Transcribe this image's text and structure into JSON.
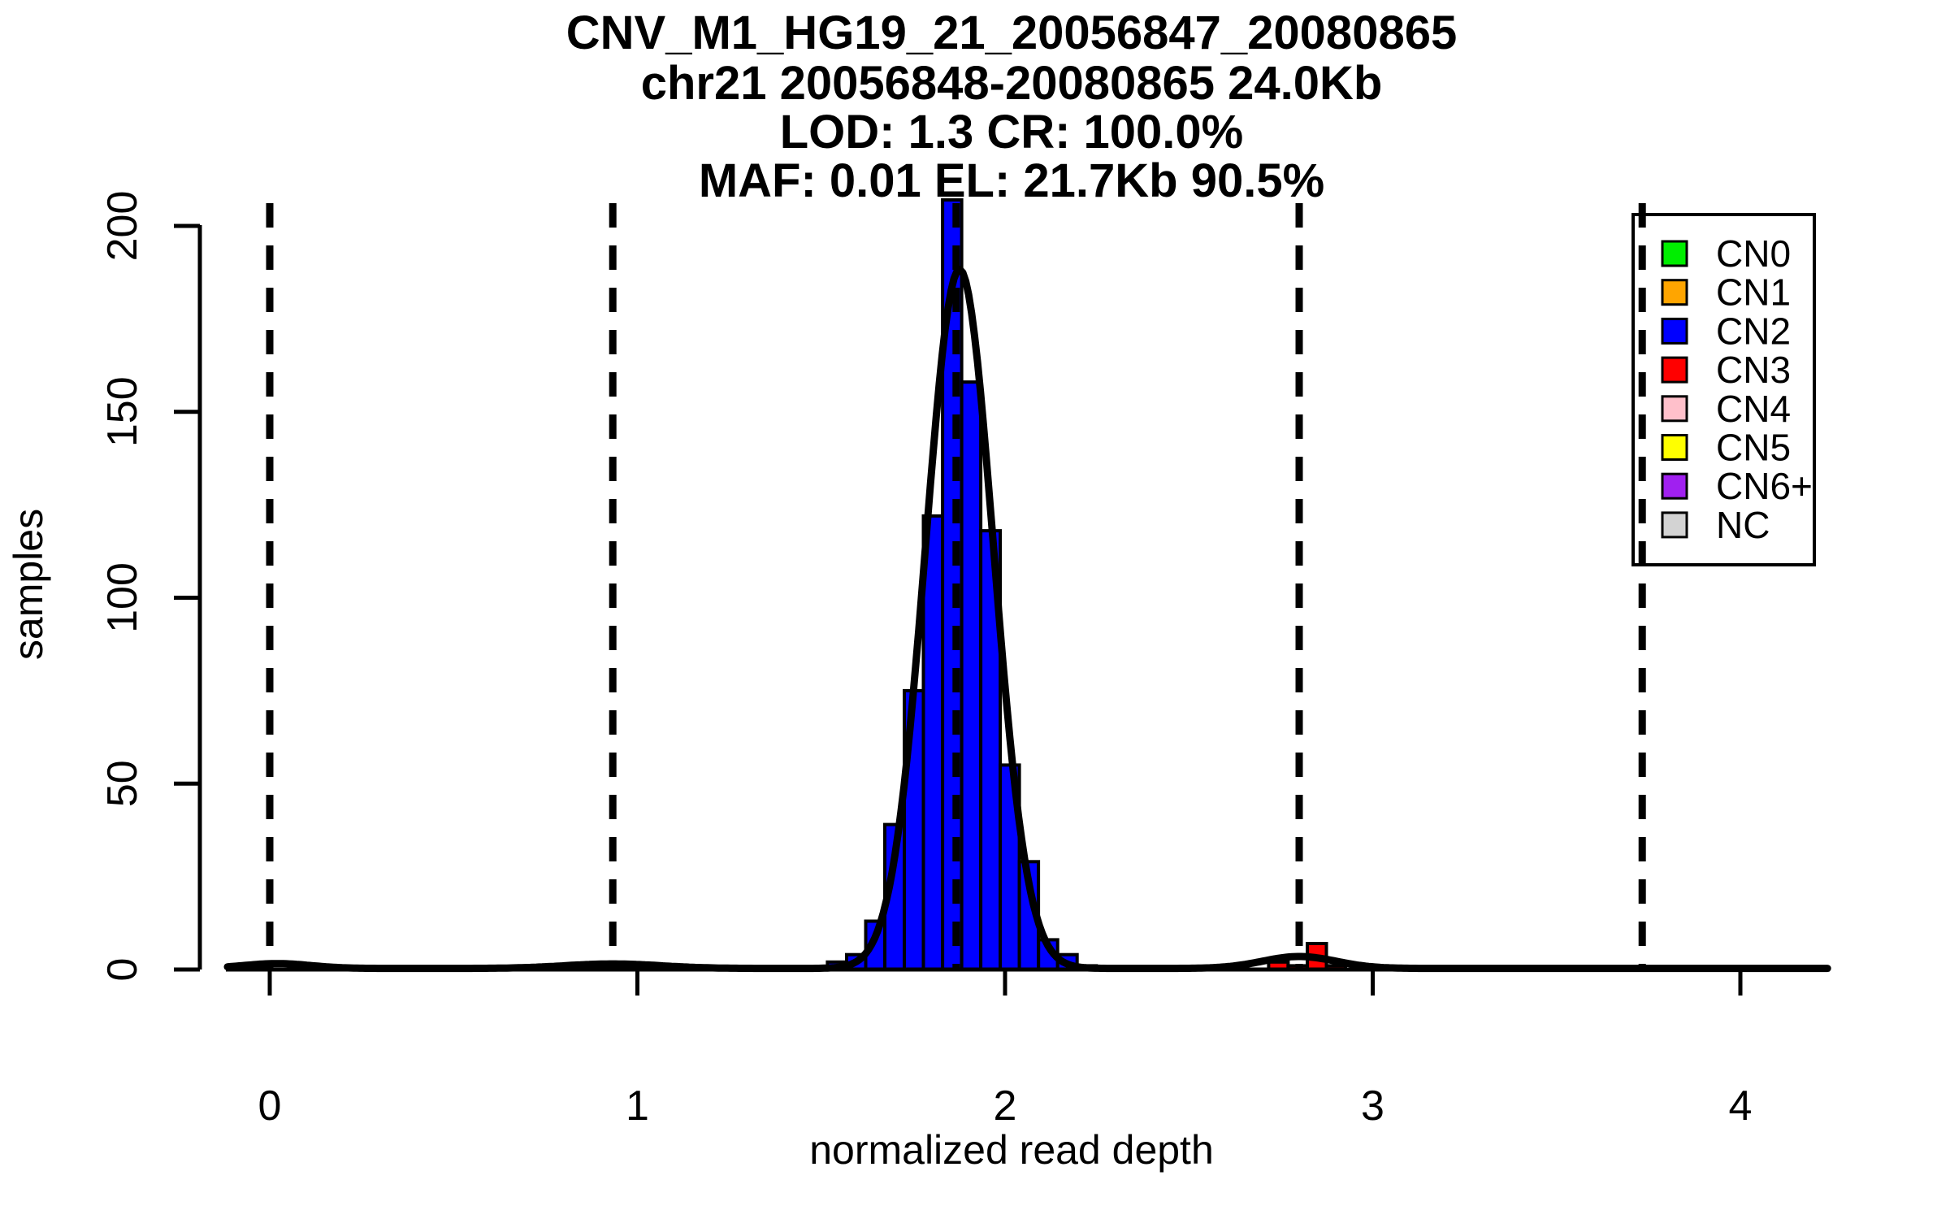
{
  "chart_data": {
    "type": "bar",
    "subtype": "histogram_with_density",
    "title_lines": [
      "CNV_M1_HG19_21_20056847_20080865",
      "chr21 20056848-20080865 24.0Kb",
      "LOD: 1.3 CR: 100.0%",
      "MAF: 0.01 EL: 21.7Kb 90.5%"
    ],
    "xlabel": "normalized read depth",
    "ylabel": "samples",
    "xlim": [
      -0.115,
      4.243
    ],
    "ylim": [
      0,
      207
    ],
    "x_ticks": [
      0,
      1,
      2,
      3,
      4
    ],
    "y_ticks": [
      0,
      50,
      100,
      150,
      200
    ],
    "grid": false,
    "bin_width": 0.052,
    "series": [
      {
        "name": "CN2",
        "color": "#0000FF",
        "bars": [
          [
            1.517,
            1.569,
            2
          ],
          [
            1.569,
            1.621,
            4
          ],
          [
            1.621,
            1.673,
            13
          ],
          [
            1.673,
            1.726,
            39
          ],
          [
            1.726,
            1.778,
            75
          ],
          [
            1.778,
            1.83,
            122
          ],
          [
            1.83,
            1.882,
            207
          ],
          [
            1.882,
            1.934,
            158
          ],
          [
            1.934,
            1.987,
            118
          ],
          [
            1.987,
            2.039,
            55
          ],
          [
            2.039,
            2.091,
            29
          ],
          [
            2.091,
            2.143,
            8
          ],
          [
            2.143,
            2.196,
            4
          ],
          [
            2.196,
            2.248,
            1
          ]
        ]
      },
      {
        "name": "CN3",
        "color": "#FF0000",
        "bars": [
          [
            2.717,
            2.77,
            2
          ],
          [
            2.77,
            2.822,
            1
          ],
          [
            2.822,
            2.874,
            7
          ],
          [
            2.874,
            2.926,
            1
          ]
        ]
      }
    ],
    "dashed_lines_x": [
      0,
      0.933,
      1.867,
      2.8,
      3.733
    ],
    "density_curve": {
      "color": "#000000",
      "baseline": 0.3,
      "components": [
        {
          "mu": 1.876,
          "sigma": 0.092,
          "peak": 188
        },
        {
          "mu": 2.8,
          "sigma": 0.1,
          "peak": 3.2
        },
        {
          "mu": 0.02,
          "sigma": 0.09,
          "peak": 1.3
        },
        {
          "mu": 0.933,
          "sigma": 0.13,
          "peak": 1.2
        }
      ]
    },
    "legend": {
      "position": "top-right",
      "entries": [
        {
          "label": "CN0",
          "color": "#00EE00"
        },
        {
          "label": "CN1",
          "color": "#FFA500"
        },
        {
          "label": "CN2",
          "color": "#0000FF"
        },
        {
          "label": "CN3",
          "color": "#FF0000"
        },
        {
          "label": "CN4",
          "color": "#FFC0CB"
        },
        {
          "label": "CN5",
          "color": "#FFFF00"
        },
        {
          "label": "CN6+",
          "color": "#A020F0"
        },
        {
          "label": "NC",
          "color": "#D3D3D3"
        }
      ]
    },
    "colors": {
      "axis": "#000000",
      "background": "#FFFFFF"
    }
  }
}
